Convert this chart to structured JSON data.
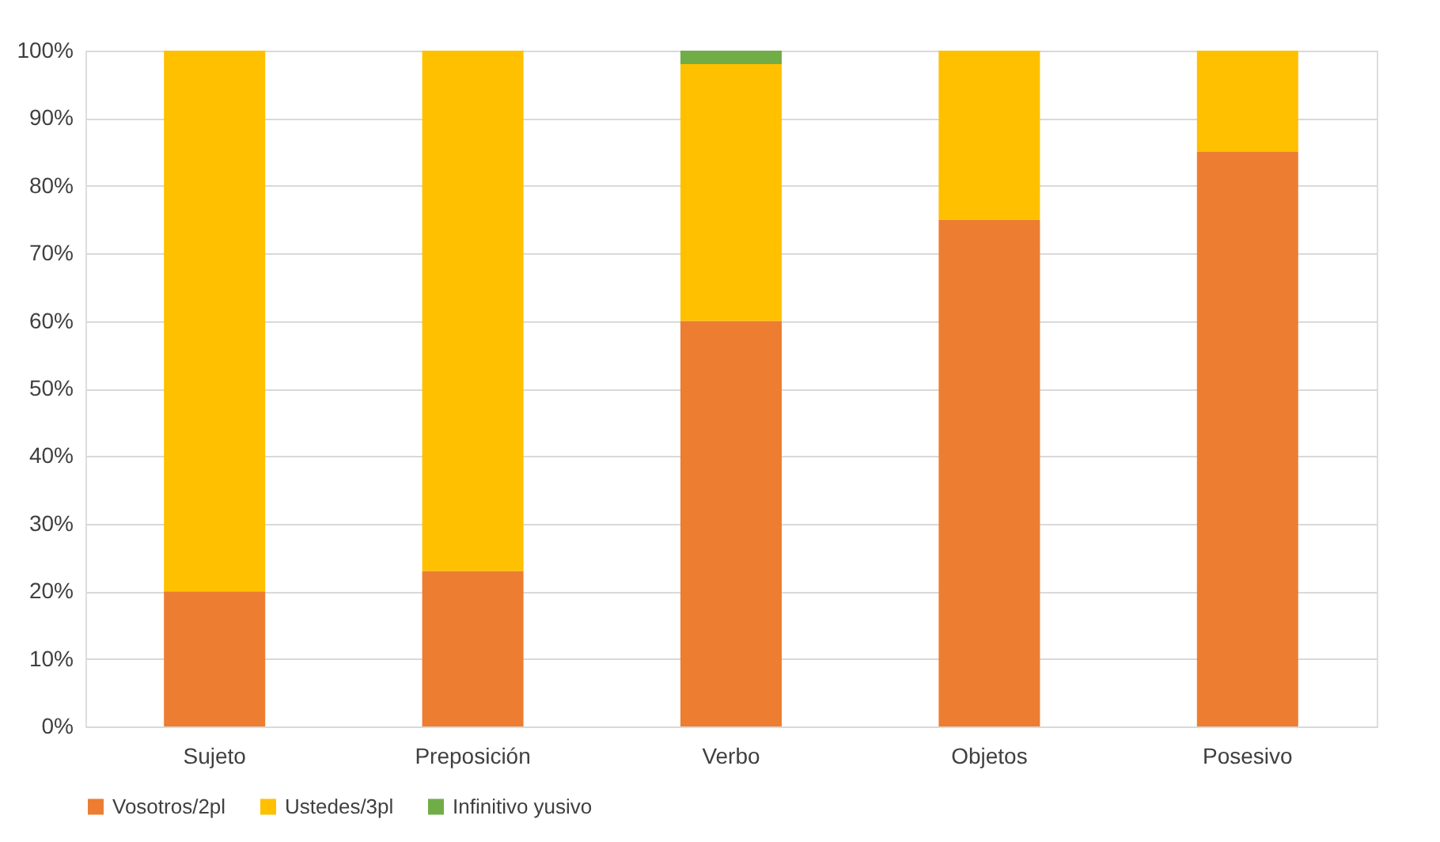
{
  "chart_data": {
    "type": "bar",
    "stacked": true,
    "categories": [
      "Sujeto",
      "Preposición",
      "Verbo",
      "Objetos",
      "Posesivo"
    ],
    "series": [
      {
        "name": "Vosotros/2pl",
        "color": "#ed7d31",
        "values": [
          20,
          23,
          60,
          75,
          85
        ]
      },
      {
        "name": "Ustedes/3pl",
        "color": "#ffc000",
        "values": [
          80,
          77,
          38,
          25,
          15
        ]
      },
      {
        "name": "Infinitivo yusivo",
        "color": "#70ad47",
        "values": [
          0,
          0,
          2,
          0,
          0
        ]
      }
    ],
    "ylim": [
      0,
      100
    ],
    "yticks": [
      {
        "value": 0,
        "label": "0%"
      },
      {
        "value": 10,
        "label": "10%"
      },
      {
        "value": 20,
        "label": "20%"
      },
      {
        "value": 30,
        "label": "30%"
      },
      {
        "value": 40,
        "label": "40%"
      },
      {
        "value": 50,
        "label": "50%"
      },
      {
        "value": 60,
        "label": "60%"
      },
      {
        "value": 70,
        "label": "70%"
      },
      {
        "value": 80,
        "label": "80%"
      },
      {
        "value": 90,
        "label": "90%"
      },
      {
        "value": 100,
        "label": "100%"
      }
    ],
    "grid": "y",
    "legend": "bottom"
  }
}
